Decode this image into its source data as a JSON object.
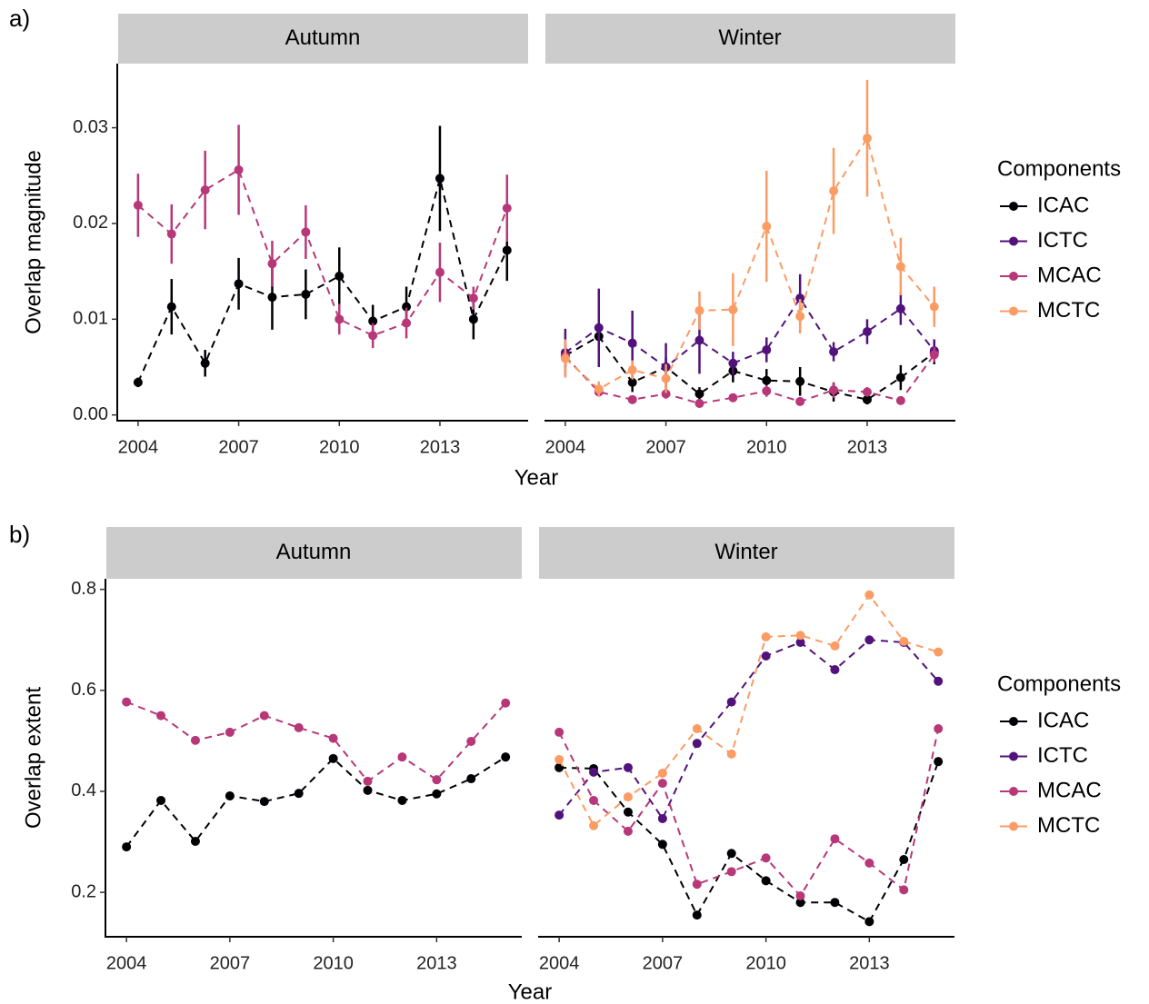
{
  "chart_data": [
    {
      "label": "a)",
      "type": "line",
      "xlabel": "Year",
      "ylabel": "Overlap magnitude",
      "legend_title": "Components",
      "x": [
        2004,
        2005,
        2006,
        2007,
        2008,
        2009,
        2010,
        2011,
        2012,
        2013,
        2014,
        2015
      ],
      "xlim": [
        2003.38,
        2015.63
      ],
      "xticks": [
        2004,
        2007,
        2010,
        2013
      ],
      "ylim": [
        -0.0006,
        0.0367
      ],
      "yticks": [
        {
          "value": 0,
          "label": "0.00"
        },
        0.01,
        0.02,
        0.03
      ],
      "facets": [
        {
          "title": "Autumn",
          "series": [
            {
              "name": "ICAC",
              "color": "#000004",
              "values": [
                0.0034,
                0.0113,
                0.0054,
                0.0137,
                0.0123,
                0.0126,
                0.0145,
                0.0098,
                0.0113,
                0.0247,
                0.01,
                0.0172
              ],
              "errors": [
                0.0005,
                0.0029,
                0.0014,
                0.0027,
                0.0034,
                0.0026,
                0.003,
                0.0017,
                0.0021,
                0.0055,
                0.0021,
                0.0032
              ]
            },
            {
              "name": "MCAC",
              "color": "#b73779",
              "values": [
                0.0219,
                0.0189,
                0.0235,
                0.0256,
                0.0158,
                0.0191,
                0.01,
                0.0083,
                0.0096,
                0.0149,
                0.0122,
                0.0216
              ],
              "errors": [
                0.0033,
                0.0031,
                0.0041,
                0.0047,
                0.0024,
                0.0028,
                0.0016,
                0.0013,
                0.0016,
                0.0031,
                0.0012,
                0.0035
              ]
            }
          ]
        },
        {
          "title": "Winter",
          "series": [
            {
              "name": "ICAC",
              "color": "#000004",
              "values": [
                0.0062,
                0.0082,
                0.0034,
                0.005,
                0.0022,
                0.0046,
                0.0036,
                0.0035,
                0.0024,
                0.0016,
                0.0039,
                0.0065
              ],
              "errors": [
                0.0012,
                0.0012,
                0.001,
                0.001,
                0.0007,
                0.0012,
                0.0012,
                0.0015,
                0.001,
                0.0005,
                0.0013,
                0.0012
              ]
            },
            {
              "name": "ICTC",
              "color": "#51127c",
              "values": [
                0.0065,
                0.0091,
                0.0075,
                0.005,
                0.0078,
                0.0054,
                0.0068,
                0.0122,
                0.0066,
                0.0087,
                0.0111,
                0.0067
              ],
              "errors": [
                0.0025,
                0.0041,
                0.0034,
                0.0025,
                0.0035,
                0.0012,
                0.0013,
                0.0025,
                0.001,
                0.0013,
                0.0017,
                0.0012
              ]
            },
            {
              "name": "MCAC",
              "color": "#b73779",
              "values": [
                0.0061,
                0.0024,
                0.0016,
                0.0022,
                0.0012,
                0.0018,
                0.0025,
                0.0014,
                0.0026,
                0.0024,
                0.0015,
                0.0063
              ],
              "errors": [
                0.001,
                0.0005,
                0.0004,
                0.0005,
                0.0004,
                0.0004,
                0.0006,
                0.0004,
                0.0008,
                0.0005,
                0.0004,
                0.0008
              ]
            },
            {
              "name": "MCTC",
              "color": "#fb9c64",
              "values": [
                0.0059,
                0.0027,
                0.0047,
                0.0038,
                0.0109,
                0.011,
                0.0197,
                0.0103,
                0.0234,
                0.0289,
                0.0155,
                0.0113
              ],
              "errors": [
                0.002,
                0.0008,
                0.001,
                0.0015,
                0.002,
                0.0038,
                0.0058,
                0.0018,
                0.0045,
                0.0061,
                0.003,
                0.0021
              ]
            }
          ]
        }
      ]
    },
    {
      "label": "b)",
      "type": "line",
      "xlabel": "Year",
      "ylabel": "Overlap extent",
      "legend_title": "Components",
      "x": [
        2004,
        2005,
        2006,
        2007,
        2008,
        2009,
        2010,
        2011,
        2012,
        2013,
        2014,
        2015
      ],
      "xlim": [
        2003.39,
        2015.47
      ],
      "xticks": [
        2004,
        2007,
        2010,
        2013
      ],
      "ylim": [
        0.112,
        0.821
      ],
      "yticks": [
        0.2,
        0.4,
        0.6,
        0.8
      ],
      "facets": [
        {
          "title": "Autumn",
          "series": [
            {
              "name": "ICAC",
              "color": "#000004",
              "values": [
                0.29,
                0.382,
                0.301,
                0.391,
                0.38,
                0.396,
                0.465,
                0.402,
                0.382,
                0.395,
                0.425,
                0.468
              ]
            },
            {
              "name": "MCAC",
              "color": "#b73779",
              "values": [
                0.577,
                0.55,
                0.501,
                0.517,
                0.55,
                0.526,
                0.505,
                0.42,
                0.468,
                0.423,
                0.499,
                0.575
              ]
            }
          ]
        },
        {
          "title": "Winter",
          "series": [
            {
              "name": "ICAC",
              "color": "#000004",
              "values": [
                0.447,
                0.445,
                0.359,
                0.295,
                0.155,
                0.277,
                0.223,
                0.18,
                0.18,
                0.142,
                0.265,
                0.459
              ]
            },
            {
              "name": "ICTC",
              "color": "#51127c",
              "values": [
                0.353,
                0.438,
                0.447,
                0.346,
                0.495,
                0.577,
                0.668,
                0.695,
                0.641,
                0.7,
                0.695,
                0.618
              ]
            },
            {
              "name": "MCAC",
              "color": "#b73779",
              "values": [
                0.517,
                0.382,
                0.321,
                0.416,
                0.216,
                0.241,
                0.268,
                0.193,
                0.306,
                0.258,
                0.205,
                0.524
              ]
            },
            {
              "name": "MCTC",
              "color": "#fb9c64",
              "values": [
                0.463,
                0.332,
                0.389,
                0.436,
                0.524,
                0.474,
                0.706,
                0.709,
                0.688,
                0.789,
                0.697,
                0.676
              ]
            }
          ]
        }
      ]
    }
  ]
}
